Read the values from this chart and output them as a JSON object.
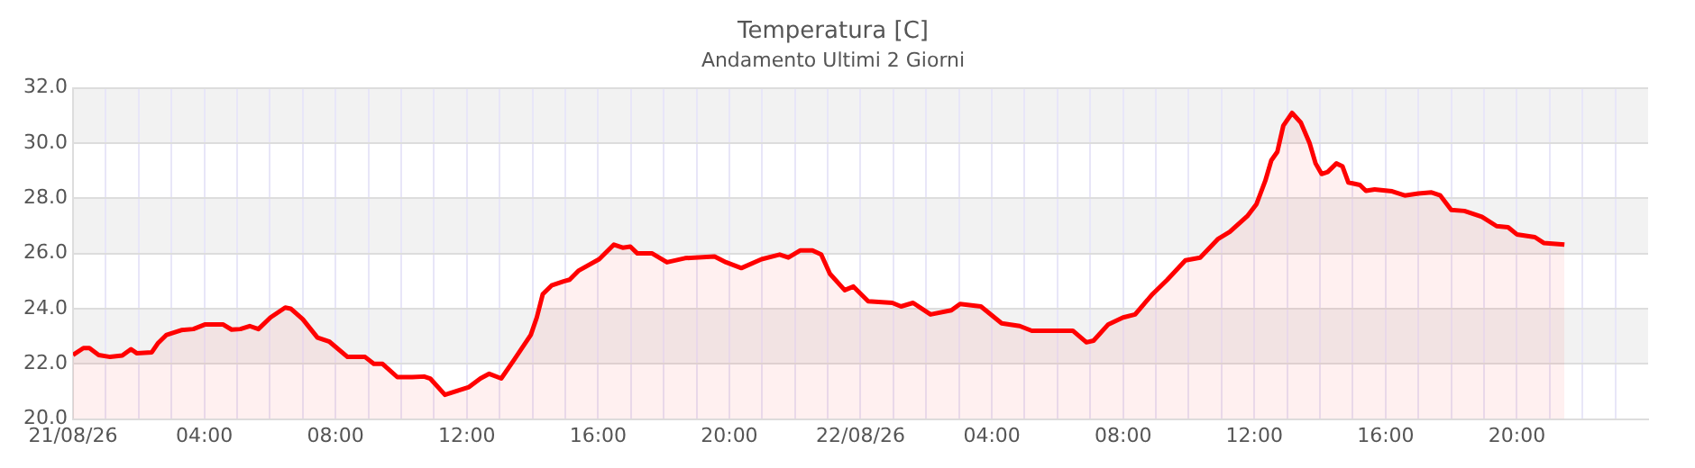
{
  "chart_data": {
    "type": "area",
    "title": "Temperatura [C]",
    "subtitle": "Andamento Ultimi 2 Giorni",
    "x": [
      "--08-21T00:00",
      "--08-21T00:19",
      "--08-21T00:30",
      "--08-21T00:47",
      "--08-21T01:08",
      "--08-21T01:30",
      "--08-21T01:46",
      "--08-21T01:57",
      "--08-21T02:24",
      "--08-21T02:35",
      "--08-21T02:51",
      "--08-21T03:18",
      "--08-21T03:40",
      "--08-21T04:02",
      "--08-21T04:34",
      "--08-21T04:50",
      "--08-21T05:06",
      "--08-21T05:23",
      "--08-21T05:39",
      "--08-21T06:01",
      "--08-21T06:28",
      "--08-21T06:38",
      "--08-21T07:00",
      "--08-21T07:27",
      "--08-21T07:49",
      "--08-21T08:22",
      "--08-21T08:54",
      "--08-21T09:10",
      "--08-21T09:26",
      "--08-21T09:53",
      "--08-21T10:20",
      "--08-21T10:42",
      "--08-21T10:53",
      "--08-21T11:20",
      "--08-21T11:47",
      "--08-21T12:04",
      "--08-21T12:25",
      "--08-21T12:41",
      "--08-21T13:03",
      "--08-21T13:25",
      "--08-21T13:57",
      "--08-21T14:08",
      "--08-21T14:19",
      "--08-21T14:35",
      "--08-21T14:57",
      "--08-21T15:08",
      "--08-21T15:24",
      "--08-21T16:02",
      "--08-21T16:29",
      "--08-21T16:45",
      "--08-21T16:59",
      "--08-21T17:12",
      "--08-21T17:39",
      "--08-21T18:06",
      "--08-21T18:39",
      "--08-21T19:33",
      "--08-21T19:54",
      "--08-21T20:22",
      "--08-21T20:59",
      "--08-21T21:32",
      "--08-21T21:48",
      "--08-21T22:10",
      "--08-21T22:32",
      "--08-21T22:48",
      "--08-21T23:04",
      "--08-21T23:31",
      "--08-21T23:47",
      "--08-22T00:14",
      "--08-22T00:58",
      "--08-22T01:14",
      "--08-22T01:36",
      "--08-22T02:08",
      "--08-22T02:46",
      "--08-22T03:02",
      "--08-22T03:40",
      "--08-22T04:18",
      "--08-22T04:51",
      "--08-22T05:13",
      "--08-22T05:50",
      "--08-22T06:28",
      "--08-22T06:53",
      "--08-22T07:06",
      "--08-22T07:33",
      "--08-22T08:00",
      "--08-22T08:22",
      "--08-22T08:54",
      "--08-22T09:21",
      "--08-22T09:54",
      "--08-22T10:21",
      "--08-22T10:54",
      "--08-22T11:15",
      "--08-22T11:48",
      "--08-22T12:04",
      "--08-22T12:20",
      "--08-22T12:31",
      "--08-22T12:42",
      "--08-22T12:53",
      "--08-22T13:09",
      "--08-22T13:25",
      "--08-22T13:41",
      "--08-22T13:52",
      "--08-22T14:03",
      "--08-22T14:14",
      "--08-22T14:30",
      "--08-22T14:41",
      "--08-22T14:52",
      "--08-22T15:13",
      "--08-22T15:24",
      "--08-22T15:40",
      "--08-22T16:12",
      "--08-22T16:35",
      "--08-22T17:00",
      "--08-22T17:24",
      "--08-22T17:40",
      "--08-22T18:00",
      "--08-22T18:24",
      "--08-22T18:56",
      "--08-22T19:23",
      "--08-22T19:44",
      "--08-22T20:00",
      "--08-22T20:33",
      "--08-22T20:49",
      "--08-22T21:27"
    ],
    "series": [
      {
        "color": "#ff0000",
        "values": [
          22.32,
          22.57,
          22.57,
          22.32,
          22.25,
          22.3,
          22.53,
          22.38,
          22.42,
          22.74,
          23.05,
          23.22,
          23.26,
          23.43,
          23.43,
          23.24,
          23.26,
          23.37,
          23.26,
          23.68,
          24.04,
          24,
          23.62,
          22.95,
          22.8,
          22.25,
          22.25,
          22,
          22,
          21.52,
          21.52,
          21.54,
          21.47,
          20.88,
          21.05,
          21.16,
          21.47,
          21.64,
          21.47,
          22.1,
          23.05,
          23.68,
          24.53,
          24.84,
          24.99,
          25.05,
          25.37,
          25.79,
          26.32,
          26.21,
          26.25,
          26,
          26,
          25.68,
          25.83,
          25.89,
          25.68,
          25.47,
          25.79,
          25.96,
          25.85,
          26.11,
          26.11,
          25.96,
          25.26,
          24.67,
          24.8,
          24.27,
          24.21,
          24.08,
          24.21,
          23.79,
          23.94,
          24.17,
          24.08,
          23.47,
          23.37,
          23.2,
          23.2,
          23.2,
          22.78,
          22.84,
          23.43,
          23.68,
          23.79,
          24.53,
          25.05,
          25.75,
          25.85,
          26.53,
          26.78,
          27.37,
          27.79,
          28.63,
          29.37,
          29.68,
          30.63,
          31.09,
          30.74,
          30,
          29.26,
          28.88,
          28.95,
          29.26,
          29.16,
          28.57,
          28.48,
          28.27,
          28.32,
          28.25,
          28.1,
          28.17,
          28.21,
          28.1,
          27.58,
          27.54,
          27.33,
          26.99,
          26.95,
          26.69,
          26.59,
          26.38,
          26.32
        ]
      }
    ],
    "xlim": [
      "--08-21T00:00",
      "--08-23T00:00"
    ],
    "xticks": [
      {
        "value": "--08-21T00:00",
        "label": "21/08/26"
      },
      {
        "value": "--08-21T01:00",
        "label": null
      },
      {
        "value": "--08-21T02:00",
        "label": null
      },
      {
        "value": "--08-21T03:00",
        "label": null
      },
      {
        "value": "--08-21T04:00",
        "label": "04:00"
      },
      {
        "value": "--08-21T05:00",
        "label": null
      },
      {
        "value": "--08-21T06:00",
        "label": null
      },
      {
        "value": "--08-21T07:00",
        "label": null
      },
      {
        "value": "--08-21T08:00",
        "label": "08:00"
      },
      {
        "value": "--08-21T09:00",
        "label": null
      },
      {
        "value": "--08-21T10:00",
        "label": null
      },
      {
        "value": "--08-21T11:00",
        "label": null
      },
      {
        "value": "--08-21T12:00",
        "label": "12:00"
      },
      {
        "value": "--08-21T13:00",
        "label": null
      },
      {
        "value": "--08-21T14:00",
        "label": null
      },
      {
        "value": "--08-21T15:00",
        "label": null
      },
      {
        "value": "--08-21T16:00",
        "label": "16:00"
      },
      {
        "value": "--08-21T17:00",
        "label": null
      },
      {
        "value": "--08-21T18:00",
        "label": null
      },
      {
        "value": "--08-21T19:00",
        "label": null
      },
      {
        "value": "--08-21T20:00",
        "label": "20:00"
      },
      {
        "value": "--08-21T21:00",
        "label": null
      },
      {
        "value": "--08-21T22:00",
        "label": null
      },
      {
        "value": "--08-21T23:00",
        "label": null
      },
      {
        "value": "--08-22T00:00",
        "label": "22/08/26"
      },
      {
        "value": "--08-22T01:00",
        "label": null
      },
      {
        "value": "--08-22T02:00",
        "label": null
      },
      {
        "value": "--08-22T03:00",
        "label": null
      },
      {
        "value": "--08-22T04:00",
        "label": "04:00"
      },
      {
        "value": "--08-22T05:00",
        "label": null
      },
      {
        "value": "--08-22T06:00",
        "label": null
      },
      {
        "value": "--08-22T07:00",
        "label": null
      },
      {
        "value": "--08-22T08:00",
        "label": "08:00"
      },
      {
        "value": "--08-22T09:00",
        "label": null
      },
      {
        "value": "--08-22T10:00",
        "label": null
      },
      {
        "value": "--08-22T11:00",
        "label": null
      },
      {
        "value": "--08-22T12:00",
        "label": "12:00"
      },
      {
        "value": "--08-22T13:00",
        "label": null
      },
      {
        "value": "--08-22T14:00",
        "label": null
      },
      {
        "value": "--08-22T15:00",
        "label": null
      },
      {
        "value": "--08-22T16:00",
        "label": "16:00"
      },
      {
        "value": "--08-22T17:00",
        "label": null
      },
      {
        "value": "--08-22T18:00",
        "label": null
      },
      {
        "value": "--08-22T19:00",
        "label": null
      },
      {
        "value": "--08-22T20:00",
        "label": "20:00"
      },
      {
        "value": "--08-22T21:00",
        "label": null
      },
      {
        "value": "--08-22T22:00",
        "label": null
      },
      {
        "value": "--08-22T23:00",
        "label": null
      }
    ],
    "ylim": [
      20,
      32
    ],
    "yticks": [
      {
        "value": 20,
        "label": "20.0"
      },
      {
        "value": 22,
        "label": "22.0"
      },
      {
        "value": 24,
        "label": "24.0"
      },
      {
        "value": 26,
        "label": "26.0"
      },
      {
        "value": 28,
        "label": "28.0"
      },
      {
        "value": 30,
        "label": "30.0"
      },
      {
        "value": 32,
        "label": "32.0"
      }
    ],
    "grid": true,
    "legend": false,
    "marker": "none",
    "line_style": "solid"
  }
}
